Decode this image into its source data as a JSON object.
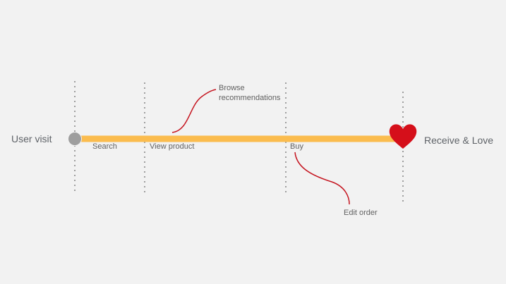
{
  "journey": {
    "start_label": "User visit",
    "end_label": "Receive & Love",
    "steps": [
      {
        "label": "Search"
      },
      {
        "label": "View product"
      },
      {
        "label": "Buy"
      }
    ],
    "annotations": {
      "browse": {
        "line1": "Browse",
        "line2": "recommendations"
      },
      "edit": {
        "label": "Edit order"
      }
    },
    "end_icon": "heart-icon",
    "start_icon": "circle-icon"
  },
  "colors": {
    "track": "#fbbc4e",
    "start_node": "#9e9e9e",
    "heart": "#d50f1a",
    "annotation_line": "#c5141f",
    "divider": "#9e9e9e",
    "text": "#616161"
  }
}
